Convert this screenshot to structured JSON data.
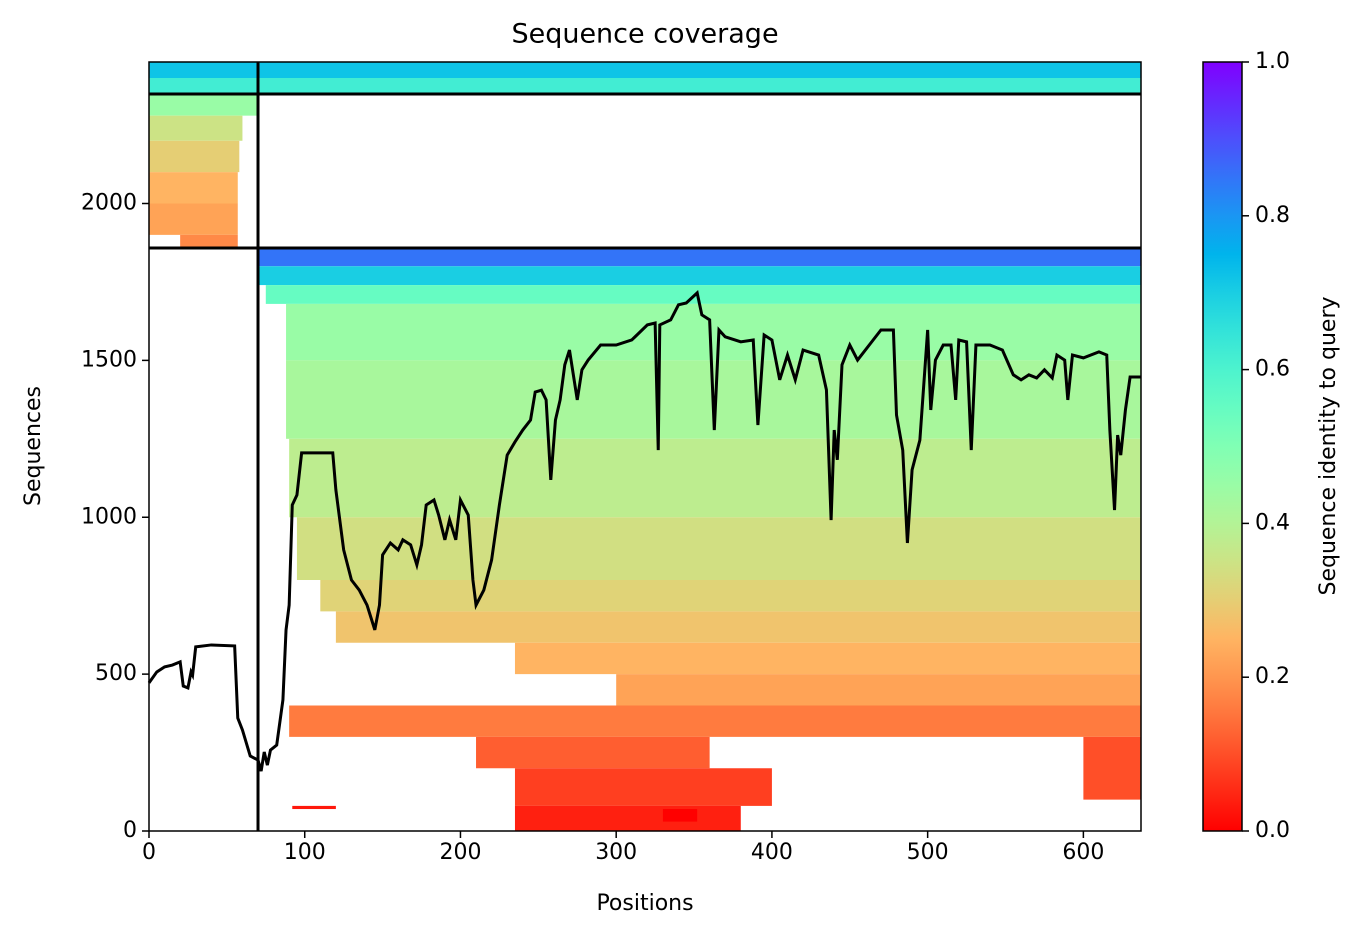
{
  "chart_data": {
    "type": "heatmap",
    "title": "Sequence coverage",
    "x_label": "Positions",
    "y_label": "Sequences",
    "xlim": [
      0,
      637
    ],
    "xticks": [
      0,
      100,
      200,
      300,
      400,
      500,
      600
    ],
    "ylim": [
      0,
      2451
    ],
    "yticks": [
      0,
      500,
      1000,
      1500,
      2000
    ],
    "colormap": "rainbow_r",
    "colorbar": {
      "label": "Sequence identity to query",
      "lim": [
        0,
        1
      ],
      "ticks": [
        {
          "value": 0,
          "label": "0.0"
        },
        {
          "value": 0.2,
          "label": "0.2"
        },
        {
          "value": 0.4,
          "label": "0.4"
        },
        {
          "value": 0.6,
          "label": "0.6"
        },
        {
          "value": 0.8,
          "label": "0.8"
        },
        {
          "value": 1,
          "label": "1.0"
        }
      ]
    },
    "dividers": {
      "x": [
        70
      ],
      "y": [
        1858,
        2349
      ]
    },
    "heatmap": [
      {
        "x": [
          0,
          637
        ],
        "y": [
          2400,
          2451
        ],
        "identity": 0.72
      },
      {
        "x": [
          0,
          637
        ],
        "y": [
          2349,
          2400
        ],
        "identity": 0.62
      },
      {
        "x": [
          0,
          70
        ],
        "y": [
          2280,
          2349
        ],
        "identity": 0.45
      },
      {
        "x": [
          0,
          60
        ],
        "y": [
          2200,
          2280
        ],
        "identity": 0.35
      },
      {
        "x": [
          0,
          58
        ],
        "y": [
          2100,
          2200
        ],
        "identity": 0.3
      },
      {
        "x": [
          0,
          57
        ],
        "y": [
          2000,
          2100
        ],
        "identity": 0.25
      },
      {
        "x": [
          0,
          57
        ],
        "y": [
          1900,
          2000
        ],
        "identity": 0.22
      },
      {
        "x": [
          20,
          57
        ],
        "y": [
          1858,
          1900
        ],
        "identity": 0.18
      },
      {
        "x": [
          70,
          637
        ],
        "y": [
          1800,
          1858
        ],
        "identity": 0.85
      },
      {
        "x": [
          70,
          637
        ],
        "y": [
          1740,
          1800
        ],
        "identity": 0.7
      },
      {
        "x": [
          75,
          637
        ],
        "y": [
          1680,
          1740
        ],
        "identity": 0.55
      },
      {
        "x": [
          88,
          637
        ],
        "y": [
          1500,
          1680
        ],
        "identity": 0.45
      },
      {
        "x": [
          88,
          637
        ],
        "y": [
          1250,
          1500
        ],
        "identity": 0.42
      },
      {
        "x": [
          90,
          637
        ],
        "y": [
          1000,
          1250
        ],
        "identity": 0.38
      },
      {
        "x": [
          95,
          637
        ],
        "y": [
          800,
          1000
        ],
        "identity": 0.34
      },
      {
        "x": [
          110,
          637
        ],
        "y": [
          700,
          800
        ],
        "identity": 0.31
      },
      {
        "x": [
          120,
          637
        ],
        "y": [
          600,
          700
        ],
        "identity": 0.28
      },
      {
        "x": [
          235,
          637
        ],
        "y": [
          500,
          600
        ],
        "identity": 0.25
      },
      {
        "x": [
          300,
          637
        ],
        "y": [
          400,
          500
        ],
        "identity": 0.22
      },
      {
        "x": [
          90,
          637
        ],
        "y": [
          300,
          400
        ],
        "identity": 0.16
      },
      {
        "x": [
          210,
          360
        ],
        "y": [
          200,
          300
        ],
        "identity": 0.12
      },
      {
        "x": [
          600,
          637
        ],
        "y": [
          100,
          300
        ],
        "identity": 0.1
      },
      {
        "x": [
          235,
          400
        ],
        "y": [
          80,
          200
        ],
        "identity": 0.08
      },
      {
        "x": [
          235,
          380
        ],
        "y": [
          0,
          80
        ],
        "identity": 0.04
      },
      {
        "x": [
          92,
          120
        ],
        "y": [
          70,
          80
        ],
        "identity": 0.03
      },
      {
        "x": [
          330,
          352
        ],
        "y": [
          30,
          70
        ],
        "identity": 0
      }
    ],
    "coverage": {
      "color": "#000000",
      "x": [
        0,
        5,
        10,
        15,
        20,
        22,
        25,
        27,
        28,
        30,
        40,
        55,
        57,
        60,
        65,
        70,
        72,
        74,
        76,
        78,
        82,
        86,
        88,
        90,
        92,
        95,
        98,
        118,
        120,
        125,
        130,
        135,
        140,
        145,
        148,
        150,
        155,
        160,
        163,
        168,
        172,
        175,
        178,
        183,
        186,
        190,
        193,
        197,
        200,
        205,
        208,
        210,
        215,
        220,
        225,
        230,
        235,
        240,
        245,
        248,
        252,
        255,
        258,
        261,
        264,
        267,
        270,
        275,
        278,
        282,
        290,
        300,
        310,
        320,
        325,
        327,
        328,
        335,
        340,
        345,
        352,
        355,
        360,
        363,
        366,
        370,
        380,
        388,
        391,
        395,
        400,
        405,
        410,
        415,
        420,
        430,
        435,
        438,
        440,
        442,
        445,
        450,
        455,
        465,
        470,
        478,
        480,
        484,
        487,
        490,
        495,
        500,
        502,
        505,
        510,
        515,
        518,
        520,
        525,
        528,
        531,
        540,
        548,
        555,
        560,
        565,
        570,
        575,
        580,
        583,
        588,
        590,
        593,
        600,
        610,
        615,
        617,
        620,
        622,
        624,
        627,
        630,
        637
      ],
      "values": [
        472,
        507,
        523,
        529,
        539,
        462,
        456,
        507,
        497,
        587,
        593,
        590,
        360,
        322,
        239,
        226,
        191,
        252,
        210,
        258,
        274,
        418,
        641,
        720,
        1039,
        1071,
        1205,
        1205,
        1087,
        896,
        800,
        768,
        720,
        641,
        720,
        880,
        918,
        896,
        928,
        912,
        848,
        912,
        1039,
        1055,
        1007,
        928,
        992,
        928,
        1055,
        1007,
        800,
        720,
        768,
        864,
        1039,
        1198,
        1240,
        1278,
        1310,
        1399,
        1405,
        1374,
        1119,
        1310,
        1374,
        1486,
        1533,
        1374,
        1470,
        1501,
        1549,
        1549,
        1565,
        1613,
        1619,
        1214,
        1613,
        1629,
        1677,
        1683,
        1715,
        1645,
        1629,
        1278,
        1597,
        1575,
        1559,
        1565,
        1294,
        1581,
        1565,
        1438,
        1517,
        1438,
        1533,
        1517,
        1406,
        991,
        1278,
        1183,
        1486,
        1549,
        1501,
        1565,
        1597,
        1597,
        1326,
        1214,
        918,
        1151,
        1246,
        1597,
        1342,
        1501,
        1549,
        1549,
        1374,
        1565,
        1559,
        1214,
        1549,
        1549,
        1533,
        1454,
        1438,
        1454,
        1444,
        1470,
        1444,
        1517,
        1501,
        1374,
        1517,
        1508,
        1527,
        1517,
        1278,
        1023,
        1262,
        1198,
        1342,
        1447,
        1447
      ]
    }
  }
}
